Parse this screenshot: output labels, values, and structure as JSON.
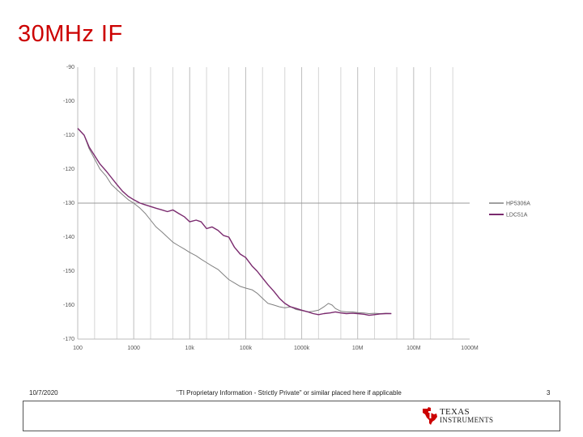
{
  "slide": {
    "title": "30MHz IF",
    "date": "10/7/2020",
    "footer_note": "\"TI Proprietary Information - Strictly Private\" or similar placed here if applicable",
    "page_number": "3",
    "logo": {
      "line1": "TEXAS",
      "line2": "INSTRUMENTS",
      "icon": "ti-state-icon",
      "color": "#cc0000"
    }
  },
  "chart_data": {
    "type": "line",
    "title": "",
    "xlabel": "",
    "ylabel": "",
    "x_scale": "log",
    "xlim": [
      10,
      100000000
    ],
    "ylim": [
      -170,
      -90
    ],
    "y_ticks": [
      -90,
      -100,
      -110,
      -120,
      -130,
      -140,
      -150,
      -160,
      -170
    ],
    "y_tick_labels": [
      "-90",
      "-100",
      "-110",
      "-120",
      "-130",
      "-140",
      "-150",
      "-160",
      "-170"
    ],
    "x_tick_values": [
      10,
      100,
      1000,
      10000,
      100000,
      1000000,
      10000000,
      100000000
    ],
    "x_tick_labels": [
      "100",
      "1000",
      "10k",
      "100k",
      "1000k",
      "10M",
      "100M",
      "1000M"
    ],
    "grid": "vertical-log",
    "reference_line_y": -130,
    "legend_position": "right",
    "series": [
      {
        "name": "HP5306A",
        "color": "#808080",
        "points": [
          [
            10,
            -108
          ],
          [
            13,
            -110
          ],
          [
            16,
            -114
          ],
          [
            20,
            -117
          ],
          [
            25,
            -120
          ],
          [
            32,
            -122
          ],
          [
            40,
            -124.5
          ],
          [
            50,
            -126
          ],
          [
            63,
            -127.5
          ],
          [
            80,
            -129
          ],
          [
            100,
            -130
          ],
          [
            130,
            -131.5
          ],
          [
            160,
            -133
          ],
          [
            200,
            -135
          ],
          [
            250,
            -137
          ],
          [
            320,
            -138.5
          ],
          [
            400,
            -140
          ],
          [
            500,
            -141.5
          ],
          [
            630,
            -142.5
          ],
          [
            800,
            -143.5
          ],
          [
            1000,
            -144.5
          ],
          [
            1300,
            -145.5
          ],
          [
            1600,
            -146.5
          ],
          [
            2000,
            -147.5
          ],
          [
            2500,
            -148.5
          ],
          [
            3200,
            -149.5
          ],
          [
            4000,
            -151
          ],
          [
            5000,
            -152.5
          ],
          [
            6300,
            -153.5
          ],
          [
            8000,
            -154.5
          ],
          [
            10000,
            -155
          ],
          [
            13000,
            -155.5
          ],
          [
            16000,
            -156.5
          ],
          [
            20000,
            -158
          ],
          [
            25000,
            -159.5
          ],
          [
            32000,
            -160
          ],
          [
            40000,
            -160.5
          ],
          [
            50000,
            -160.8
          ],
          [
            63000,
            -160.5
          ],
          [
            80000,
            -161.3
          ],
          [
            100000,
            -161.6
          ],
          [
            130000,
            -162
          ],
          [
            160000,
            -161.8
          ],
          [
            200000,
            -161.5
          ],
          [
            250000,
            -160.5
          ],
          [
            300000,
            -159.5
          ],
          [
            350000,
            -160
          ],
          [
            400000,
            -161
          ],
          [
            500000,
            -161.8
          ],
          [
            630000,
            -162
          ],
          [
            800000,
            -162
          ],
          [
            1000000,
            -162.2
          ],
          [
            1300000,
            -162.3
          ],
          [
            1600000,
            -162.5
          ],
          [
            2000000,
            -162.4
          ],
          [
            2500000,
            -162.5
          ],
          [
            3200000,
            -162.4
          ],
          [
            4000000,
            -162.5
          ]
        ]
      },
      {
        "name": "LDC51A",
        "color": "#7a2a6e",
        "points": [
          [
            10,
            -108
          ],
          [
            13,
            -110
          ],
          [
            16,
            -113.5
          ],
          [
            20,
            -116
          ],
          [
            25,
            -118.5
          ],
          [
            32,
            -120.5
          ],
          [
            40,
            -122.5
          ],
          [
            50,
            -124.5
          ],
          [
            63,
            -126.5
          ],
          [
            80,
            -128
          ],
          [
            100,
            -129
          ],
          [
            130,
            -130
          ],
          [
            160,
            -130.5
          ],
          [
            200,
            -131
          ],
          [
            250,
            -131.5
          ],
          [
            320,
            -132
          ],
          [
            400,
            -132.5
          ],
          [
            500,
            -132
          ],
          [
            630,
            -133
          ],
          [
            800,
            -134
          ],
          [
            1000,
            -135.5
          ],
          [
            1300,
            -135
          ],
          [
            1600,
            -135.5
          ],
          [
            2000,
            -137.5
          ],
          [
            2500,
            -137
          ],
          [
            3200,
            -138
          ],
          [
            4000,
            -139.5
          ],
          [
            5000,
            -140
          ],
          [
            6300,
            -143
          ],
          [
            8000,
            -145
          ],
          [
            10000,
            -146
          ],
          [
            13000,
            -148.5
          ],
          [
            16000,
            -150
          ],
          [
            20000,
            -152
          ],
          [
            25000,
            -154
          ],
          [
            32000,
            -156
          ],
          [
            40000,
            -158
          ],
          [
            50000,
            -159.5
          ],
          [
            63000,
            -160.5
          ],
          [
            80000,
            -161
          ],
          [
            100000,
            -161.5
          ],
          [
            130000,
            -162
          ],
          [
            160000,
            -162.5
          ],
          [
            200000,
            -162.8
          ],
          [
            250000,
            -162.5
          ],
          [
            320000,
            -162.3
          ],
          [
            400000,
            -162
          ],
          [
            500000,
            -162.3
          ],
          [
            630000,
            -162.5
          ],
          [
            800000,
            -162.4
          ],
          [
            1000000,
            -162.5
          ],
          [
            1300000,
            -162.7
          ],
          [
            1600000,
            -163
          ],
          [
            2000000,
            -162.8
          ],
          [
            2500000,
            -162.6
          ],
          [
            3200000,
            -162.5
          ],
          [
            4000000,
            -162.5
          ]
        ]
      }
    ]
  }
}
